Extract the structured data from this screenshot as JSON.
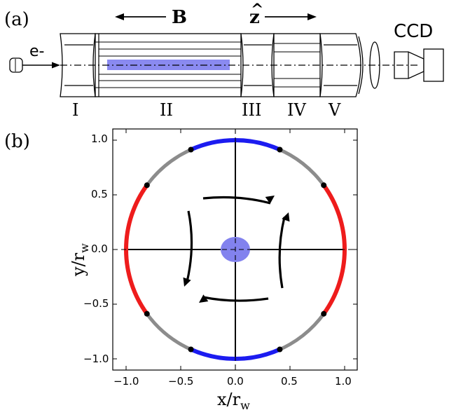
{
  "panel_a": {
    "label": "(a)",
    "electron_label": "e-",
    "field_label": "B",
    "z_label": "z",
    "z_hat": "^",
    "camera_label": "CCD",
    "segments": [
      "I",
      "II",
      "III",
      "IV",
      "V"
    ],
    "plasma_color": "#8a8af0"
  },
  "panel_b": {
    "label": "(b)",
    "x_ticks": [
      "−1.0",
      "−0.5",
      "0.0",
      "0.5",
      "1.0"
    ],
    "y_ticks": [
      "1.0",
      "0.5",
      "0.0",
      "−0.5",
      "−1.0"
    ],
    "x_label_main": "x/r",
    "x_label_sub": "w",
    "y_label_main": "y/r",
    "y_label_sub": "w",
    "colors": {
      "wall": "#8c8c8c",
      "top_bottom_electrodes": "#1c1cf0",
      "side_electrodes": "#ee1c1c",
      "plasma": "#8282ee",
      "field_lines": "#000000"
    }
  }
}
